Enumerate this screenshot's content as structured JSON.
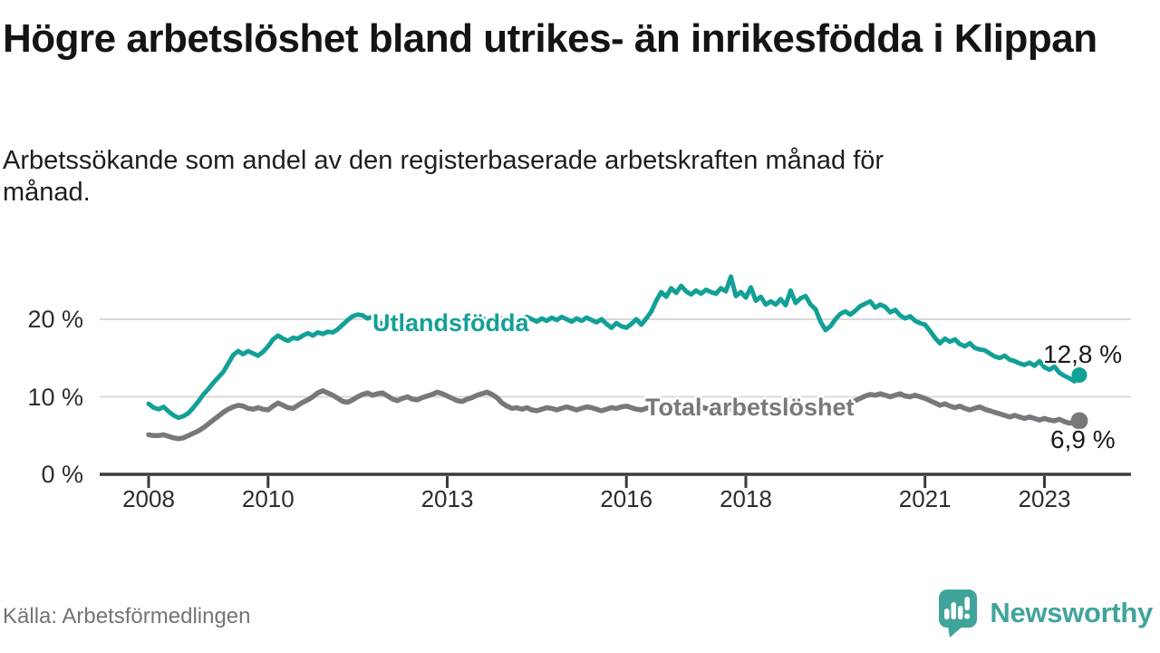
{
  "header": {
    "title": "Högre arbetslöshet bland utrikes- än inrikesfödda i Klippan",
    "subtitle": "Arbetssökande som andel av den registerbaserade arbetskraften månad för månad."
  },
  "footer": {
    "source": "Källa: Arbetsförmedlingen",
    "logo_text": "Newsworthy",
    "logo_color": "#41a49c"
  },
  "chart_data": {
    "type": "line",
    "unit": "% av registerbaserad arbetskraft",
    "frequency": "monthly",
    "start": "2008-01",
    "end": "2023-08",
    "ylim": [
      0,
      27
    ],
    "grid": "horizontal",
    "legend_position": "inline-labels",
    "grid_color": "#d9d9d9",
    "axis_color": "#3a3a3a",
    "tick_text_color": "#2d2d2d",
    "x_ticks": [
      {
        "year": 2008,
        "label": "2008"
      },
      {
        "year": 2010,
        "label": "2010"
      },
      {
        "year": 2013,
        "label": "2013"
      },
      {
        "year": 2016,
        "label": "2016"
      },
      {
        "year": 2018,
        "label": "2018"
      },
      {
        "year": 2021,
        "label": "2021"
      },
      {
        "year": 2023,
        "label": "2023"
      }
    ],
    "y_ticks": [
      {
        "value": 0,
        "label": "0 %"
      },
      {
        "value": 10,
        "label": "10 %"
      },
      {
        "value": 20,
        "label": "20 %"
      }
    ],
    "series": [
      {
        "name": "Utlandsfödda",
        "color": "#12a096",
        "end_label": "12,8 %",
        "latest_value": 12.8,
        "line_width": 5,
        "dot_radius": 8.5,
        "start_year": 2008,
        "start_month": 1,
        "values": [
          9.1,
          8.6,
          8.4,
          8.7,
          8.1,
          7.6,
          7.3,
          7.5,
          7.9,
          8.6,
          9.4,
          10.3,
          11.0,
          11.8,
          12.5,
          13.2,
          14.3,
          15.4,
          15.9,
          15.5,
          15.9,
          15.6,
          15.3,
          15.8,
          16.5,
          17.4,
          17.9,
          17.5,
          17.2,
          17.6,
          17.5,
          17.9,
          18.2,
          17.9,
          18.3,
          18.1,
          18.4,
          18.3,
          18.7,
          19.3,
          19.9,
          20.4,
          20.6,
          20.5,
          20.1,
          20.3,
          19.7,
          19.4,
          19.1,
          19.4,
          19.6,
          19.2,
          18.9,
          19.2,
          18.8,
          19.0,
          19.4,
          19.1,
          18.9,
          19.2,
          19.0,
          19.4,
          19.7,
          19.4,
          19.8,
          19.5,
          19.9,
          20.2,
          19.8,
          19.6,
          20.0,
          20.1,
          19.8,
          20.1,
          19.7,
          20.0,
          20.3,
          20.0,
          19.7,
          20.1,
          19.8,
          20.2,
          19.9,
          20.3,
          20.0,
          19.7,
          20.1,
          19.8,
          20.2,
          19.9,
          19.6,
          20.0,
          19.4,
          18.9,
          19.5,
          19.1,
          18.9,
          19.4,
          20.0,
          19.3,
          20.1,
          21.0,
          22.4,
          23.5,
          22.9,
          24.0,
          23.4,
          24.3,
          23.6,
          23.2,
          23.7,
          23.3,
          23.8,
          23.5,
          23.3,
          24.0,
          23.6,
          25.5,
          23.0,
          23.5,
          22.8,
          24.1,
          22.4,
          22.9,
          21.9,
          22.3,
          21.9,
          22.6,
          21.8,
          23.7,
          22.1,
          22.7,
          23.0,
          21.9,
          21.3,
          19.7,
          18.6,
          19.1,
          20.0,
          20.7,
          21.0,
          20.6,
          21.1,
          21.7,
          22.0,
          22.3,
          21.5,
          21.9,
          21.6,
          20.9,
          21.2,
          20.5,
          20.1,
          20.4,
          19.8,
          19.5,
          19.3,
          18.5,
          17.6,
          16.9,
          17.5,
          17.1,
          17.4,
          16.8,
          16.5,
          16.9,
          16.3,
          16.1,
          16.0,
          15.6,
          15.2,
          15.0,
          15.3,
          14.8,
          14.6,
          14.3,
          14.1,
          14.4,
          14.0,
          14.6,
          13.8,
          13.5,
          13.9,
          13.1,
          12.7,
          12.4,
          12.0,
          12.8
        ]
      },
      {
        "name": "Total arbetslöshet",
        "color": "#77777c",
        "end_label": "6,9 %",
        "latest_value": 6.9,
        "line_width": 5.5,
        "dot_radius": 9.5,
        "start_year": 2008,
        "start_month": 1,
        "values": [
          5.1,
          5.0,
          5.0,
          5.1,
          4.9,
          4.7,
          4.6,
          4.7,
          5.0,
          5.3,
          5.6,
          6.0,
          6.5,
          7.0,
          7.5,
          8.0,
          8.4,
          8.7,
          8.9,
          8.8,
          8.5,
          8.4,
          8.6,
          8.4,
          8.3,
          8.8,
          9.2,
          8.9,
          8.6,
          8.5,
          8.9,
          9.3,
          9.6,
          10.0,
          10.5,
          10.8,
          10.5,
          10.2,
          9.8,
          9.4,
          9.3,
          9.6,
          10.0,
          10.3,
          10.5,
          10.2,
          10.4,
          10.5,
          10.1,
          9.7,
          9.5,
          9.8,
          10.0,
          9.7,
          9.6,
          9.9,
          10.1,
          10.3,
          10.6,
          10.4,
          10.1,
          9.8,
          9.5,
          9.4,
          9.7,
          9.9,
          10.2,
          10.4,
          10.6,
          10.3,
          9.9,
          9.2,
          8.8,
          8.5,
          8.6,
          8.4,
          8.6,
          8.3,
          8.2,
          8.4,
          8.6,
          8.5,
          8.3,
          8.5,
          8.7,
          8.5,
          8.3,
          8.5,
          8.7,
          8.6,
          8.4,
          8.2,
          8.4,
          8.6,
          8.5,
          8.7,
          8.8,
          8.6,
          8.4,
          8.3,
          8.5,
          8.7,
          8.5,
          8.3,
          8.2,
          8.4,
          8.6,
          8.5,
          8.4,
          8.6,
          8.9,
          8.7,
          8.5,
          8.3,
          8.5,
          8.8,
          8.6,
          8.4,
          8.2,
          8.4,
          8.6,
          8.4,
          8.2,
          8.0,
          7.8,
          8.0,
          8.2,
          8.5,
          8.3,
          8.1,
          8.3,
          8.5,
          8.7,
          8.9,
          8.7,
          8.5,
          8.3,
          8.1,
          8.3,
          8.6,
          8.9,
          9.2,
          9.5,
          9.8,
          10.1,
          10.3,
          10.2,
          10.4,
          10.2,
          10.0,
          10.2,
          10.4,
          10.1,
          10.0,
          10.2,
          10.0,
          9.8,
          9.5,
          9.2,
          8.9,
          9.1,
          8.8,
          8.6,
          8.8,
          8.5,
          8.3,
          8.5,
          8.7,
          8.4,
          8.2,
          8.0,
          7.8,
          7.6,
          7.4,
          7.6,
          7.4,
          7.2,
          7.4,
          7.2,
          7.0,
          7.2,
          7.0,
          6.9,
          7.1,
          6.8,
          6.6,
          6.7,
          6.9
        ]
      }
    ]
  }
}
